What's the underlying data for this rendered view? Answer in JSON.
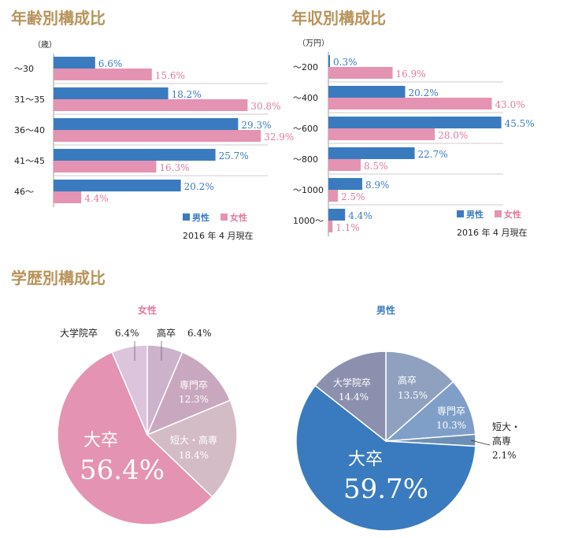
{
  "sections": {
    "age_title": "年齢別構成比",
    "income_title": "年収別構成比",
    "education_title": "学歴別構成比"
  },
  "colors": {
    "male": "#3a7bc0",
    "female": "#e593b3",
    "title": "#b8935a"
  },
  "chart_data": [
    {
      "id": "age",
      "type": "bar",
      "orientation": "horizontal",
      "unit_label": "（歳）",
      "categories": [
        "～30",
        "31～35",
        "36～40",
        "41～45",
        "46～"
      ],
      "series": [
        {
          "name": "男性",
          "values": [
            6.6,
            18.2,
            29.3,
            25.7,
            20.2
          ],
          "labels": [
            "6.6%",
            "18.2%",
            "29.3%",
            "25.7%",
            "20.2%"
          ]
        },
        {
          "name": "女性",
          "values": [
            15.6,
            30.8,
            32.9,
            16.3,
            4.4
          ],
          "labels": [
            "15.6%",
            "30.8%",
            "32.9%",
            "16.3%",
            "4.4%"
          ]
        }
      ],
      "xlim": [
        0,
        35
      ],
      "legend_position": "bottom-right",
      "note": "2016 年 4 月現在"
    },
    {
      "id": "income",
      "type": "bar",
      "orientation": "horizontal",
      "unit_label": "（万円）",
      "categories": [
        "～200",
        "～400",
        "～600",
        "～800",
        "～1000",
        "1000～"
      ],
      "series": [
        {
          "name": "男性",
          "values": [
            0.3,
            20.2,
            45.5,
            22.7,
            8.9,
            4.4
          ],
          "labels": [
            "0.3%",
            "20.2%",
            "45.5%",
            "22.7%",
            "8.9%",
            "4.4%"
          ]
        },
        {
          "name": "女性",
          "values": [
            16.9,
            43.0,
            28.0,
            8.5,
            2.5,
            1.1
          ],
          "labels": [
            "16.9%",
            "43.0%",
            "28.0%",
            "8.5%",
            "2.5%",
            "1.1%"
          ]
        }
      ],
      "xlim": [
        0,
        48
      ],
      "legend_position": "bottom-right",
      "note": "2016 年 4 月現在"
    },
    {
      "id": "edu_female",
      "type": "pie",
      "title": "女性",
      "slices": [
        {
          "name": "高卒",
          "value": 6.4,
          "label": "6.4%",
          "color": "#cdb2cc"
        },
        {
          "name": "専門卒",
          "value": 12.3,
          "label": "12.3%",
          "color": "#c9a8bf"
        },
        {
          "name": "短大・高専",
          "value": 18.4,
          "label": "18.4%",
          "color": "#d4bcc6"
        },
        {
          "name": "大卒",
          "value": 56.4,
          "label": "56.4%",
          "color": "#e593b3"
        },
        {
          "name": "大学院卒",
          "value": 6.4,
          "label": "6.4%",
          "color": "#dcc4dc"
        }
      ]
    },
    {
      "id": "edu_male",
      "type": "pie",
      "title": "男性",
      "slices": [
        {
          "name": "高卒",
          "value": 13.5,
          "label": "13.5%",
          "color": "#8fa1bf"
        },
        {
          "name": "専門卒",
          "value": 10.3,
          "label": "10.3%",
          "color": "#7f9fc9"
        },
        {
          "name": "短大・高専",
          "value": 2.1,
          "label": "2.1%",
          "color": "#6e8fb5"
        },
        {
          "name": "大卒",
          "value": 59.7,
          "label": "59.7%",
          "color": "#3a7bc0"
        },
        {
          "name": "大学院卒",
          "value": 14.4,
          "label": "14.4%",
          "color": "#8a90ad"
        }
      ]
    }
  ]
}
